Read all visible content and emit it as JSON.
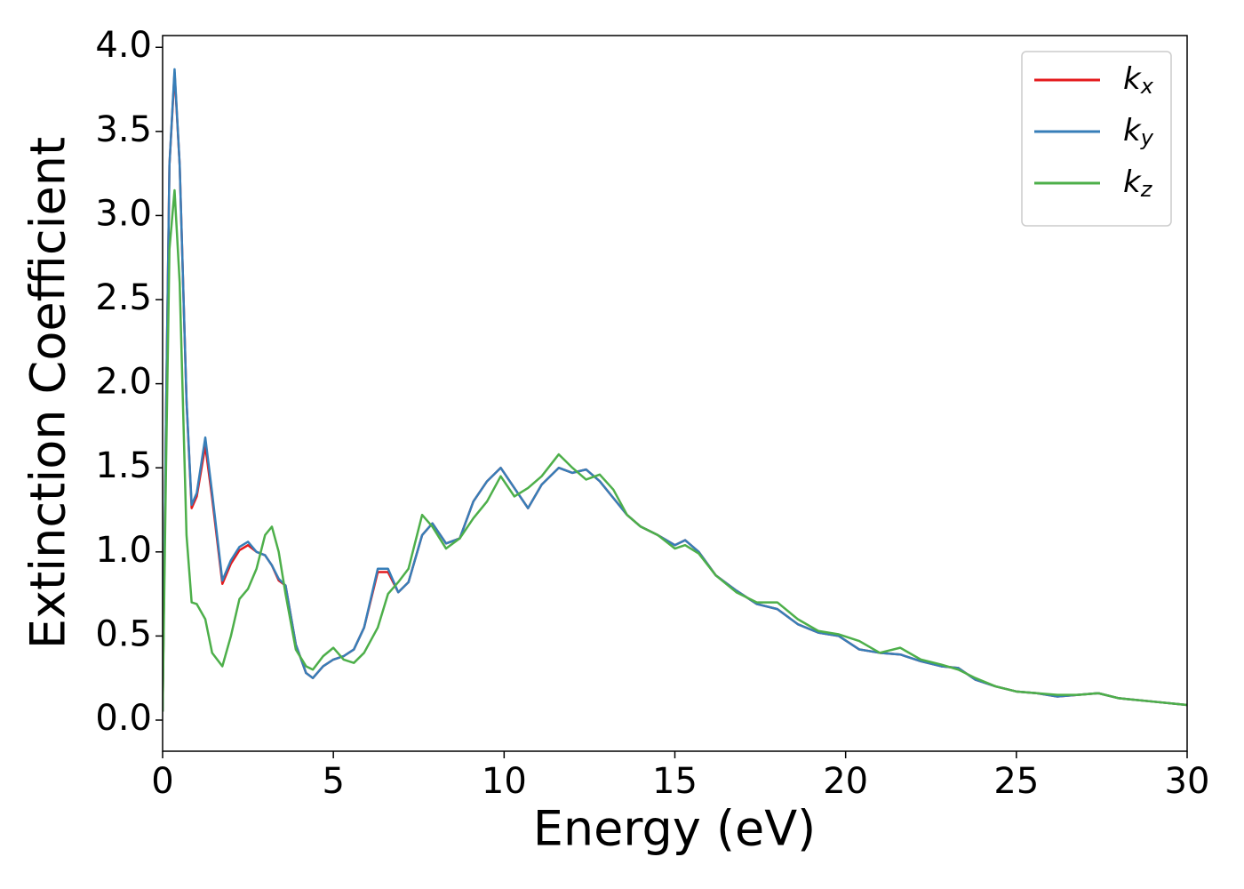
{
  "chart_data": {
    "type": "line",
    "xlabel": "Energy (eV)",
    "ylabel": "Extinction Coefficient",
    "x": [
      0,
      0.1,
      0.2,
      0.35,
      0.5,
      0.7,
      0.85,
      1.0,
      1.25,
      1.45,
      1.75,
      2.0,
      2.25,
      2.5,
      2.75,
      3.0,
      3.2,
      3.4,
      3.6,
      3.9,
      4.2,
      4.4,
      4.7,
      5.0,
      5.3,
      5.6,
      5.9,
      6.3,
      6.6,
      6.9,
      7.2,
      7.6,
      7.9,
      8.3,
      8.7,
      9.1,
      9.5,
      9.9,
      10.3,
      10.7,
      11.1,
      11.6,
      12.0,
      12.4,
      12.8,
      13.2,
      13.6,
      14.0,
      14.5,
      15.0,
      15.3,
      15.7,
      16.2,
      16.8,
      17.4,
      18.0,
      18.6,
      19.2,
      19.8,
      20.4,
      21.0,
      21.6,
      22.2,
      22.8,
      23.3,
      23.8,
      24.4,
      25.0,
      25.6,
      26.2,
      26.8,
      27.4,
      28.0,
      29.0,
      30.0
    ],
    "series": [
      {
        "name": "kx",
        "color": "#e41a1c",
        "values": [
          0.05,
          1.8,
          3.3,
          3.85,
          3.3,
          1.9,
          1.26,
          1.33,
          1.63,
          1.32,
          0.81,
          0.93,
          1.01,
          1.04,
          1.0,
          0.98,
          0.92,
          0.83,
          0.8,
          0.45,
          0.28,
          0.25,
          0.32,
          0.36,
          0.38,
          0.42,
          0.55,
          0.88,
          0.88,
          0.76,
          0.82,
          1.1,
          1.17,
          1.05,
          1.08,
          1.3,
          1.42,
          1.5,
          1.38,
          1.26,
          1.4,
          1.5,
          1.47,
          1.49,
          1.42,
          1.32,
          1.22,
          1.15,
          1.1,
          1.04,
          1.07,
          1.0,
          0.86,
          0.77,
          0.69,
          0.66,
          0.57,
          0.52,
          0.5,
          0.42,
          0.4,
          0.39,
          0.35,
          0.32,
          0.31,
          0.24,
          0.2,
          0.17,
          0.16,
          0.14,
          0.15,
          0.16,
          0.13,
          0.11,
          0.09
        ]
      },
      {
        "name": "ky",
        "color": "#377eb8",
        "values": [
          0.05,
          1.8,
          3.3,
          3.87,
          3.3,
          1.9,
          1.28,
          1.35,
          1.68,
          1.35,
          0.83,
          0.95,
          1.03,
          1.06,
          1.0,
          0.98,
          0.92,
          0.84,
          0.8,
          0.45,
          0.28,
          0.25,
          0.32,
          0.36,
          0.38,
          0.42,
          0.55,
          0.9,
          0.9,
          0.76,
          0.82,
          1.1,
          1.17,
          1.05,
          1.08,
          1.3,
          1.42,
          1.5,
          1.38,
          1.26,
          1.4,
          1.5,
          1.47,
          1.49,
          1.42,
          1.32,
          1.22,
          1.15,
          1.1,
          1.04,
          1.07,
          1.0,
          0.86,
          0.77,
          0.69,
          0.66,
          0.57,
          0.52,
          0.5,
          0.42,
          0.4,
          0.39,
          0.35,
          0.32,
          0.31,
          0.24,
          0.2,
          0.17,
          0.16,
          0.14,
          0.15,
          0.16,
          0.13,
          0.11,
          0.09
        ]
      },
      {
        "name": "kz",
        "color": "#4daf4a",
        "values": [
          0.05,
          1.5,
          2.8,
          3.15,
          2.6,
          1.1,
          0.7,
          0.69,
          0.6,
          0.4,
          0.32,
          0.5,
          0.72,
          0.78,
          0.9,
          1.1,
          1.15,
          1.0,
          0.75,
          0.42,
          0.32,
          0.3,
          0.38,
          0.43,
          0.36,
          0.34,
          0.4,
          0.55,
          0.75,
          0.82,
          0.9,
          1.22,
          1.15,
          1.02,
          1.08,
          1.2,
          1.3,
          1.45,
          1.33,
          1.38,
          1.45,
          1.58,
          1.5,
          1.43,
          1.46,
          1.37,
          1.22,
          1.15,
          1.1,
          1.02,
          1.04,
          0.99,
          0.86,
          0.76,
          0.7,
          0.7,
          0.6,
          0.53,
          0.51,
          0.47,
          0.4,
          0.43,
          0.36,
          0.33,
          0.3,
          0.25,
          0.2,
          0.17,
          0.16,
          0.15,
          0.15,
          0.16,
          0.13,
          0.11,
          0.09
        ]
      }
    ],
    "xlim": [
      0,
      30
    ],
    "xticks": [
      0,
      5,
      10,
      15,
      20,
      25,
      30
    ],
    "ylim": [
      -0.185,
      4.07
    ],
    "yticks": [
      {
        "value": 0,
        "label": "0.0"
      },
      0.5,
      {
        "value": 1,
        "label": "1.0"
      },
      1.5,
      {
        "value": 2,
        "label": "2.0"
      },
      2.5,
      {
        "value": 3,
        "label": "3.0"
      },
      3.5,
      {
        "value": 4,
        "label": "4.0"
      }
    ],
    "legend": "upper right"
  }
}
